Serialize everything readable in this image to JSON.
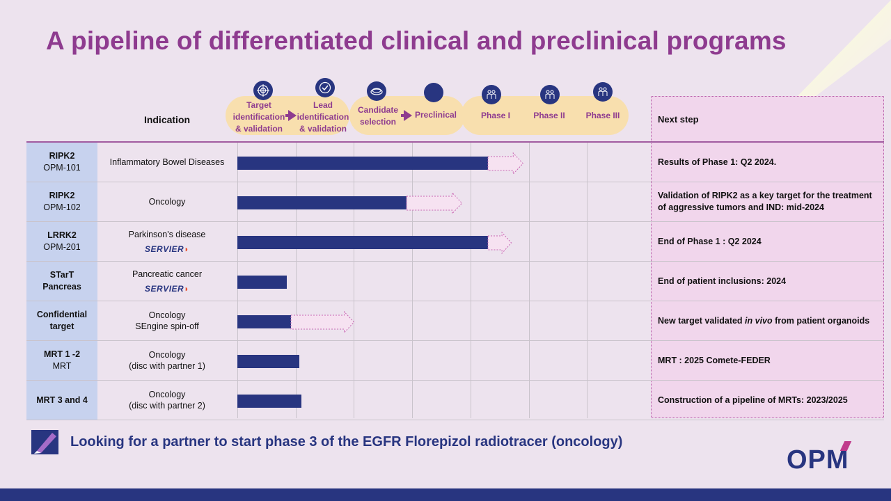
{
  "title": "A pipeline of differentiated clinical and preclinical programs",
  "headers": {
    "indication": "Indication",
    "next_step": "Next step"
  },
  "phases": [
    {
      "label": "Target\nidentification\n& validation",
      "icon": "target-icon"
    },
    {
      "label": "Lead\nidentification\n& validation",
      "icon": "check-icon"
    },
    {
      "label": "Candidate\nselection",
      "icon": "dish-icon"
    },
    {
      "label": "Preclinical",
      "icon": "mouse-icon"
    },
    {
      "label": "Phase I",
      "icon": "people-icon"
    },
    {
      "label": "Phase II",
      "icon": "people-icon"
    },
    {
      "label": "Phase III",
      "icon": "people-icon"
    }
  ],
  "programs": [
    {
      "name": "RIPK2",
      "code": "OPM-101",
      "indication": "Inflammatory Bowel Diseases",
      "partner": "",
      "progress": 4.3,
      "target": 4.9,
      "next_step": "Results of Phase 1: Q2 2024."
    },
    {
      "name": "RIPK2",
      "code": "OPM-102",
      "indication": "Oncology",
      "partner": "",
      "progress": 2.9,
      "target": 3.85,
      "next_step": "Validation of RIPK2 as a key target for the treatment of aggressive tumors and IND: mid-2024"
    },
    {
      "name": "LRRK2",
      "code": "OPM-201",
      "indication": "Parkinson's disease",
      "partner": "SERVIER",
      "progress": 4.3,
      "target": 4.7,
      "next_step": "End of Phase 1 : Q2 2024"
    },
    {
      "name": "STarT",
      "code": "Pancreas",
      "indication": "Pancreatic cancer",
      "partner": "SERVIER",
      "progress": 0.85,
      "target": null,
      "next_step": "End of patient inclusions: 2024"
    },
    {
      "name": "Confidential",
      "code": "target",
      "indication": "Oncology",
      "partner": "SEngine spin-off",
      "progress": 0.92,
      "target": 2.0,
      "next_step_pre": "New target validated ",
      "next_step_em": "in vivo",
      "next_step_post": " from patient organoids"
    },
    {
      "name": "MRT 1 -2",
      "code": "MRT",
      "indication": "Oncology",
      "partner": "(disc with partner 1)",
      "progress": 1.06,
      "target": null,
      "next_step": "MRT : 2025 Comete-FEDER"
    },
    {
      "name": "MRT 3 and 4",
      "code": "",
      "indication": "Oncology",
      "partner": "(disc with partner 2)",
      "progress": 1.1,
      "target": null,
      "next_step": "Construction of a pipeline of MRTs: 2023/2025"
    }
  ],
  "footer": {
    "text": "Looking for a partner to start phase 3 of the EGFR Florepizol radiotracer (oncology)"
  },
  "logo": {
    "text": "OPM"
  },
  "colors": {
    "accent": "#8e3b8f",
    "navy": "#283580",
    "phase_bg": "#f8dfae",
    "next_bg": "#f1d6ec"
  }
}
